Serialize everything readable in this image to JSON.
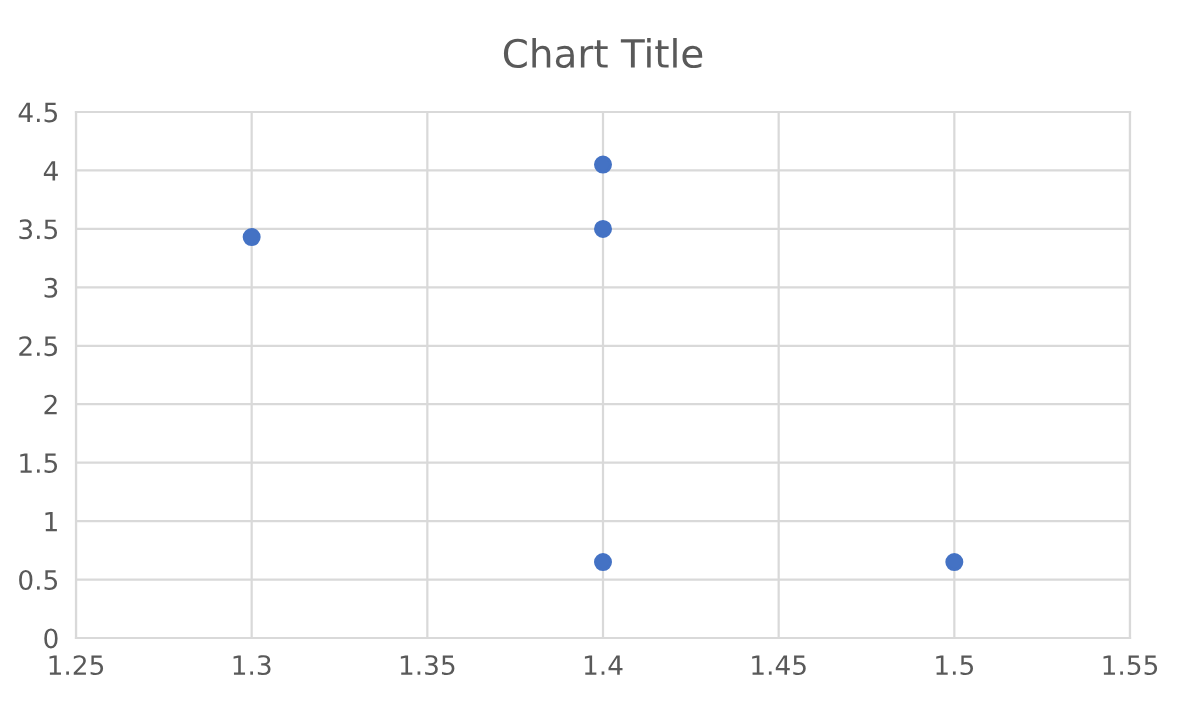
{
  "chart_data": {
    "type": "scatter",
    "title": "Chart Title",
    "x": [
      1.3,
      1.4,
      1.4,
      1.4,
      1.5
    ],
    "series": [
      {
        "color": "#4472c4",
        "values": [
          3.43,
          4.05,
          3.5,
          0.65,
          0.65
        ]
      }
    ],
    "xlim": [
      1.25,
      1.55
    ],
    "xticks": [
      1.25,
      1.3,
      1.35,
      1.4,
      1.45,
      1.5,
      1.55
    ],
    "ylim": [
      0,
      4.5
    ],
    "yticks": [
      0,
      0.5,
      1,
      1.5,
      2,
      2.5,
      3,
      3.5,
      4,
      4.5
    ],
    "grid": true,
    "marker": "circle"
  }
}
